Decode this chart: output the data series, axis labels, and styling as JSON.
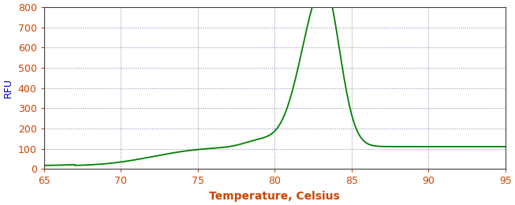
{
  "title": "",
  "xlabel": "Temperature, Celsius",
  "ylabel": "RFU",
  "xlim": [
    65,
    95
  ],
  "ylim": [
    0,
    800
  ],
  "xticks": [
    65,
    70,
    75,
    80,
    85,
    90,
    95
  ],
  "yticks": [
    0,
    100,
    200,
    300,
    400,
    500,
    600,
    700,
    800
  ],
  "line_color": "#008000",
  "line_width": 1.3,
  "background_color": "#ffffff",
  "grid_color": "#8888aa",
  "grid_dot_size": 0.7,
  "xlabel_fontsize": 10,
  "ylabel_fontsize": 9,
  "tick_fontsize": 9,
  "axis_label_color": "#cc4400",
  "tick_label_color": "#cc4400"
}
